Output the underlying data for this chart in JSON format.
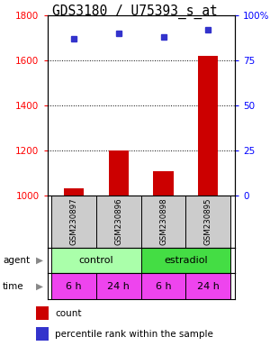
{
  "title": "GDS3180 / U75393_s_at",
  "samples": [
    "GSM230897",
    "GSM230896",
    "GSM230898",
    "GSM230895"
  ],
  "count_values": [
    1030,
    1200,
    1110,
    1620
  ],
  "percentile_values": [
    87,
    90,
    88,
    92
  ],
  "ylim_left": [
    1000,
    1800
  ],
  "yticks_left": [
    1000,
    1200,
    1400,
    1600,
    1800
  ],
  "ylim_right": [
    0,
    100
  ],
  "yticks_right": [
    0,
    25,
    50,
    75,
    100
  ],
  "ytick_labels_right": [
    "0",
    "25",
    "50",
    "75",
    "100%"
  ],
  "bar_color": "#cc0000",
  "dot_color": "#3333cc",
  "time_labels": [
    "6 h",
    "24 h",
    "6 h",
    "24 h"
  ],
  "time_color": "#ee44ee",
  "sample_box_color": "#cccccc",
  "control_color": "#aaffaa",
  "estradiol_color": "#44dd44",
  "title_fontsize": 10.5,
  "tick_fontsize": 7.5,
  "legend_fontsize": 7.5
}
